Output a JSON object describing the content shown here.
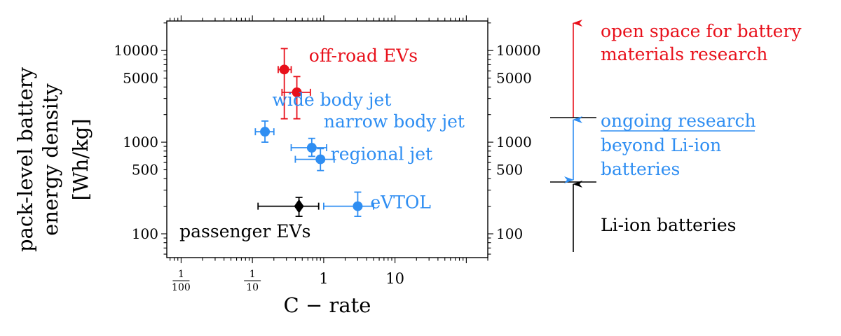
{
  "chart_data": {
    "type": "scatter",
    "x_scale": "log",
    "y_scale": "log",
    "xlabel": "C − rate",
    "ylabel_lines": [
      "pack-level battery",
      "energy density",
      "[Wh/kg]"
    ],
    "xlim": [
      0.0063,
      200
    ],
    "ylim": [
      55,
      21000
    ],
    "x_ticks": [
      {
        "value": 0.01,
        "num": "1",
        "den": "100"
      },
      {
        "value": 0.1,
        "num": "1",
        "den": "10"
      },
      {
        "value": 1,
        "text": "1"
      },
      {
        "value": 10,
        "text": "10"
      }
    ],
    "y_ticks": [
      {
        "value": 100,
        "label": "100"
      },
      {
        "value": 500,
        "label": "500"
      },
      {
        "value": 1000,
        "label": "1000"
      },
      {
        "value": 5000,
        "label": "5000"
      },
      {
        "value": 10000,
        "label": "10000"
      }
    ],
    "series": [
      {
        "name": "off-road EVs",
        "color": "#e8101b",
        "marker": "circle",
        "label": "off-road EVs",
        "label_x": 0.62,
        "label_y": 7600,
        "points": [
          {
            "x": 0.28,
            "y": 6200,
            "xerr": [
              0.23,
              0.35
            ],
            "yerr": [
              1800,
              10500
            ]
          },
          {
            "x": 0.42,
            "y": 3500,
            "xerr": [
              0.26,
              0.65
            ],
            "yerr": [
              1800,
              5200
            ]
          }
        ]
      },
      {
        "name": "wide body jet",
        "color": "#2f8ef2",
        "marker": "circle",
        "label": "wide body jet",
        "label_x": 0.19,
        "label_y": 2500,
        "points": [
          {
            "x": 0.15,
            "y": 1300,
            "xerr": [
              0.11,
              0.2
            ],
            "yerr": [
              1000,
              1700
            ]
          }
        ]
      },
      {
        "name": "narrow body jet",
        "color": "#2f8ef2",
        "marker": "circle",
        "label": "narrow body jet",
        "label_x": 1.0,
        "label_y": 1450,
        "points": [
          {
            "x": 0.68,
            "y": 870,
            "xerr": [
              0.35,
              1.1
            ],
            "yerr": [
              700,
              1100
            ]
          }
        ]
      },
      {
        "name": "regional jet",
        "color": "#2f8ef2",
        "marker": "circle",
        "label": "regional jet",
        "label_x": 1.25,
        "label_y": 640,
        "points": [
          {
            "x": 0.9,
            "y": 650,
            "xerr": [
              0.4,
              1.4
            ],
            "yerr": [
              490,
              850
            ]
          }
        ]
      },
      {
        "name": "eVTOL",
        "color": "#2f8ef2",
        "marker": "circle",
        "label": "eVTOL",
        "label_x": 4.5,
        "label_y": 190,
        "points": [
          {
            "x": 3.0,
            "y": 200,
            "xerr": [
              1.0,
              5.0
            ],
            "yerr": [
              155,
              285
            ]
          }
        ]
      },
      {
        "name": "passenger EVs",
        "color": "#000000",
        "marker": "diamond",
        "label": "passenger EVs",
        "label_x": 0.0095,
        "label_y": 92,
        "points": [
          {
            "x": 0.45,
            "y": 200,
            "xerr": [
              0.12,
              0.85
            ],
            "yerr": [
              155,
              250
            ]
          }
        ]
      }
    ]
  },
  "right_panel": {
    "top": {
      "text_lines": [
        "open space for battery",
        "materials research"
      ],
      "color": "#e8101b"
    },
    "middle": {
      "text_lines": [
        "ongoing research",
        "beyond Li-ion",
        "batteries"
      ],
      "color": "#2f8ef2"
    },
    "bottom": {
      "text_lines": [
        "Li-ion batteries"
      ],
      "color": "#000000"
    }
  }
}
